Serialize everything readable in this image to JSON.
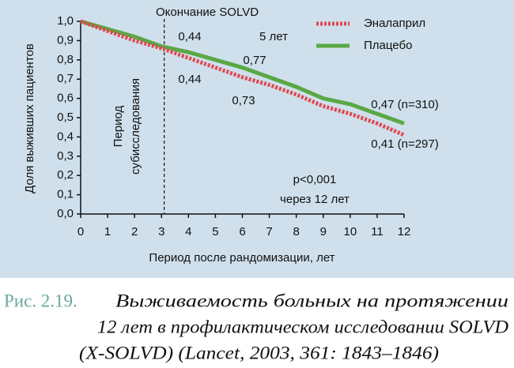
{
  "chart_data": {
    "type": "line",
    "ylabel": "Доля выживших пациентов",
    "xlabel": "Период после рандомизации, лет",
    "x": [
      0,
      1,
      2,
      3,
      4,
      5,
      6,
      7,
      8,
      9,
      10,
      11,
      12
    ],
    "series": [
      {
        "name": "Эналаприл",
        "color": "#e2474f",
        "dashed": true,
        "values": [
          1.0,
          0.95,
          0.9,
          0.86,
          0.81,
          0.76,
          0.71,
          0.67,
          0.62,
          0.56,
          0.52,
          0.47,
          0.41
        ]
      },
      {
        "name": "Плацебо",
        "color": "#5aa845",
        "dashed": false,
        "values": [
          1.0,
          0.96,
          0.92,
          0.87,
          0.84,
          0.8,
          0.76,
          0.71,
          0.66,
          0.6,
          0.57,
          0.52,
          0.47
        ]
      }
    ],
    "xlim": [
      0,
      12
    ],
    "ylim": [
      0,
      1
    ],
    "xticks": [
      0,
      1,
      2,
      3,
      4,
      5,
      6,
      7,
      8,
      9,
      10,
      11,
      12
    ],
    "yticks": [
      {
        "value": 0,
        "label": "0,0"
      },
      {
        "value": 0.1,
        "label": "0,1"
      },
      {
        "value": 0.2,
        "label": "0,2"
      },
      {
        "value": 0.3,
        "label": "0,3"
      },
      {
        "value": 0.4,
        "label": "0,4"
      },
      {
        "value": 0.5,
        "label": "0,5"
      },
      {
        "value": 0.6,
        "label": "0,6"
      },
      {
        "value": 0.7,
        "label": "0,7"
      },
      {
        "value": 0.8,
        "label": "0,8"
      },
      {
        "value": 0.9,
        "label": "0,9"
      },
      {
        "value": 1,
        "label": "1,0"
      }
    ],
    "marker_x": 3.1,
    "legend": "upper right",
    "annotations": [
      "Окончание SOLVD",
      "0,44",
      "5 лет",
      "0,77",
      "0,44",
      "0,73",
      "0,47 (n=310)",
      "0,41 (n=297)",
      "p<0,001",
      "через 12 лет",
      "Период",
      "субисследования"
    ]
  },
  "caption": {
    "label": "Рис. 2.19.",
    "lines": [
      "Выживаемость больных на протяжении",
      "12 лет в профилактическом исследовании SOLVD",
      "(X-SOLVD) (Lancet, 2003, 361: 1843–1846)"
    ]
  }
}
